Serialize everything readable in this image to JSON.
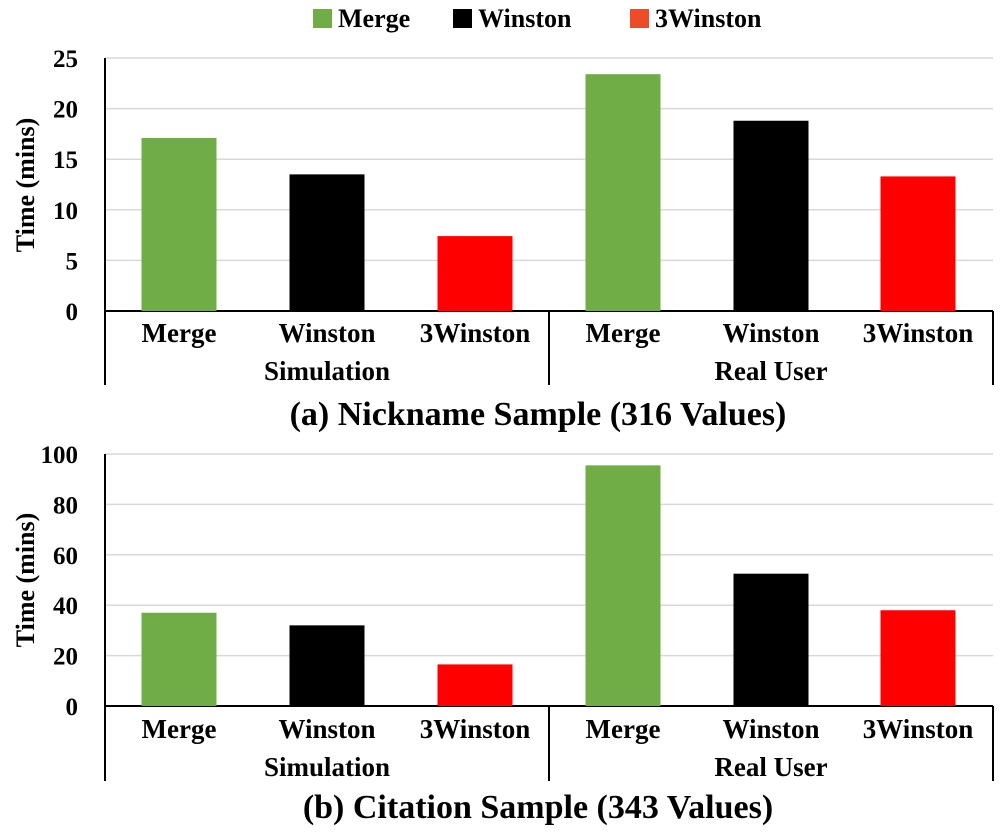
{
  "legend": {
    "items": [
      {
        "label": "Merge",
        "color": "#70ad47"
      },
      {
        "label": "Winston",
        "color": "#000000"
      },
      {
        "label": "3Winston",
        "color": "#ee4b2b"
      }
    ]
  },
  "chart_data": [
    {
      "type": "bar",
      "caption": "(a) Nickname Sample (316 Values)",
      "ylabel": "Time (mins)",
      "ylim": [
        0,
        25
      ],
      "yticks": [
        0,
        5,
        10,
        15,
        20,
        25
      ],
      "grid": true,
      "legend_position": "top-center",
      "groups": [
        {
          "label": "Simulation",
          "categories": [
            "Merge",
            "Winston",
            "3Winston"
          ],
          "values": [
            17.1,
            13.5,
            7.4
          ],
          "colors": [
            "#70ad47",
            "#000000",
            "#ff0000"
          ]
        },
        {
          "label": "Real User",
          "categories": [
            "Merge",
            "Winston",
            "3Winston"
          ],
          "values": [
            23.4,
            18.8,
            13.3
          ],
          "colors": [
            "#70ad47",
            "#000000",
            "#ff0000"
          ]
        }
      ]
    },
    {
      "type": "bar",
      "caption": "(b) Citation Sample (343 Values)",
      "ylabel": "Time (mins)",
      "ylim": [
        0,
        100
      ],
      "yticks": [
        0,
        20,
        40,
        60,
        80,
        100
      ],
      "grid": true,
      "legend_position": "top-center",
      "groups": [
        {
          "label": "Simulation",
          "categories": [
            "Merge",
            "Winston",
            "3Winston"
          ],
          "values": [
            37,
            32,
            16.5
          ],
          "colors": [
            "#70ad47",
            "#000000",
            "#ff0000"
          ]
        },
        {
          "label": "Real User",
          "categories": [
            "Merge",
            "Winston",
            "3Winston"
          ],
          "values": [
            95.5,
            52.5,
            38
          ],
          "colors": [
            "#70ad47",
            "#000000",
            "#ff0000"
          ]
        }
      ]
    }
  ]
}
